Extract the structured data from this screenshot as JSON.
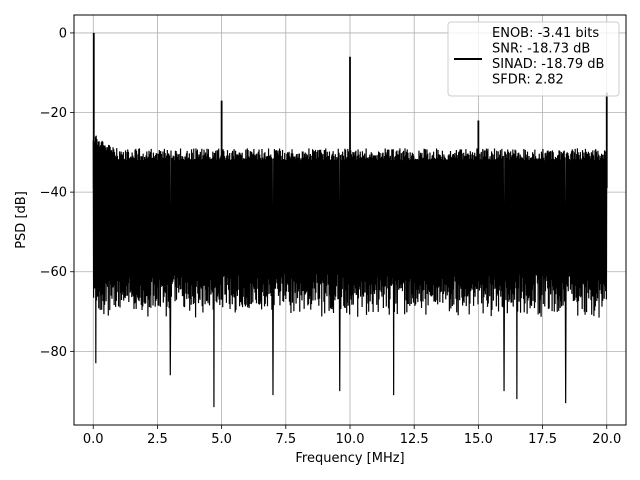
{
  "chart_data": {
    "type": "line",
    "title": "",
    "xlabel": "Frequency [MHz]",
    "ylabel": "PSD [dB]",
    "xlim": [
      -0.75,
      20.75
    ],
    "ylim": [
      -98.5,
      4.5
    ],
    "xticks": [
      0.0,
      2.5,
      5.0,
      7.5,
      10.0,
      12.5,
      15.0,
      17.5,
      20.0
    ],
    "xtick_labels": [
      "0.0",
      "2.5",
      "5.0",
      "7.5",
      "10.0",
      "12.5",
      "15.0",
      "17.5",
      "20.0"
    ],
    "yticks": [
      0,
      -20,
      -40,
      -60,
      -80
    ],
    "ytick_labels": [
      "0",
      "−20",
      "−40",
      "−60",
      "−80"
    ],
    "grid": true,
    "line_color": "#000000",
    "legend": {
      "placement": "upper-right",
      "lines": [
        "ENOB: -3.41 bits",
        "SNR: -18.73 dB",
        "SINAD: -18.79 dB",
        "SFDR: 2.82"
      ]
    },
    "noise_floor": {
      "x_range": [
        0.0,
        20.0
      ],
      "upper_envelope_db": -29,
      "lower_envelope_db": -68
    },
    "peaks": [
      {
        "x": 0.02,
        "y": 0
      },
      {
        "x": 5.0,
        "y": -17
      },
      {
        "x": 10.0,
        "y": -6
      },
      {
        "x": 15.0,
        "y": -22
      },
      {
        "x": 20.0,
        "y": -15
      }
    ],
    "dips": [
      {
        "x": 0.1,
        "y": -83
      },
      {
        "x": 3.0,
        "y": -86
      },
      {
        "x": 4.7,
        "y": -94
      },
      {
        "x": 7.0,
        "y": -91
      },
      {
        "x": 9.6,
        "y": -90
      },
      {
        "x": 11.7,
        "y": -91
      },
      {
        "x": 16.0,
        "y": -90
      },
      {
        "x": 16.5,
        "y": -92
      },
      {
        "x": 18.4,
        "y": -93
      }
    ]
  }
}
